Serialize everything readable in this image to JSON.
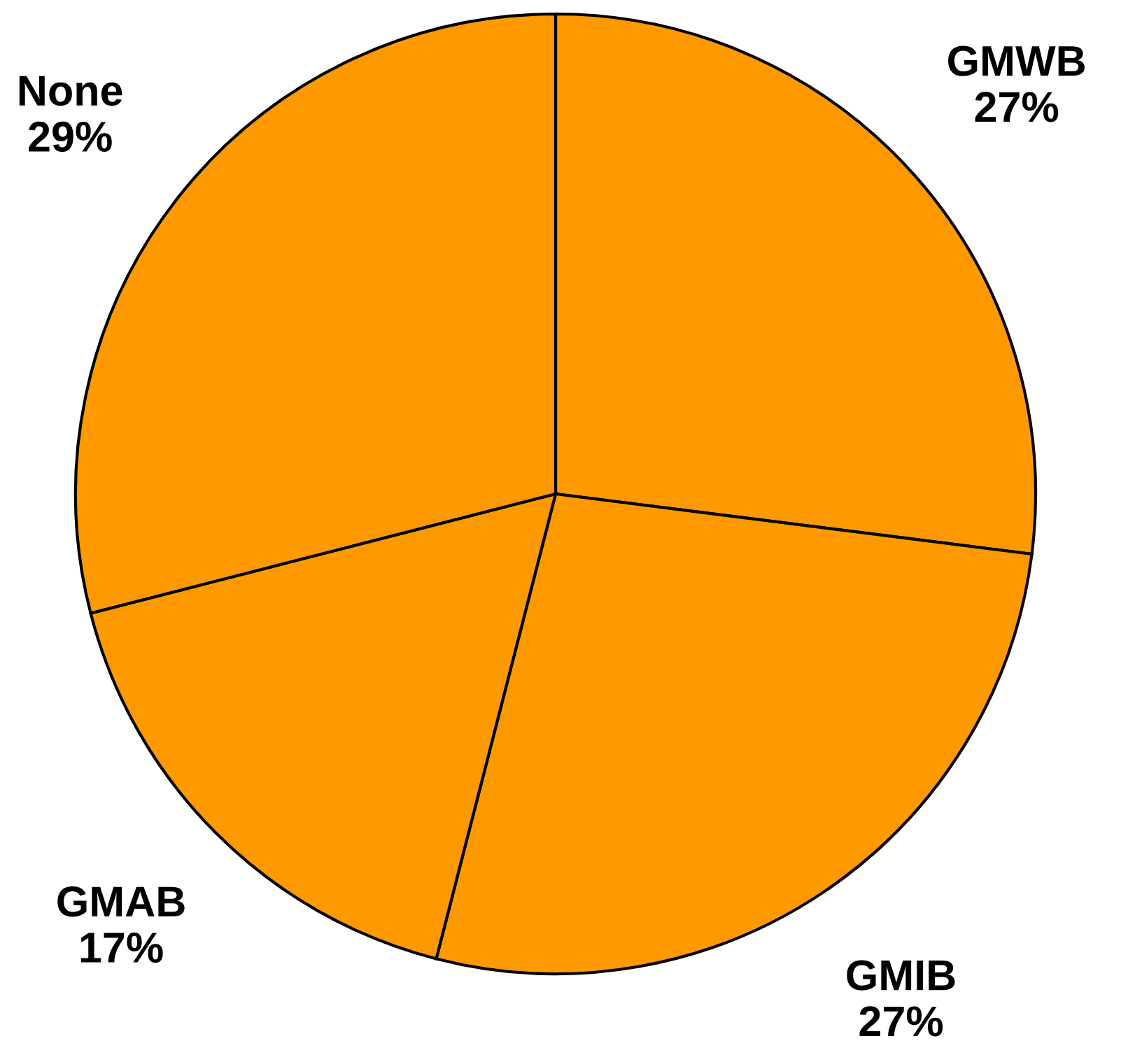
{
  "chart_data": {
    "type": "pie",
    "categories": [
      "GMWB",
      "GMIB",
      "GMAB",
      "None"
    ],
    "values": [
      27,
      27,
      17,
      29
    ],
    "value_labels": [
      "27%",
      "27%",
      "17%",
      "29%"
    ],
    "colors": [
      "#ff9900",
      "#ff9900",
      "#ff9900",
      "#ff9900"
    ]
  }
}
